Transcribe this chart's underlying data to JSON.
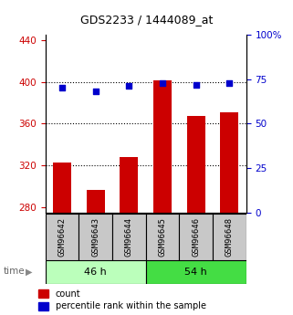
{
  "title": "GDS2233 / 1444089_at",
  "samples": [
    "GSM96642",
    "GSM96643",
    "GSM96644",
    "GSM96645",
    "GSM96646",
    "GSM96648"
  ],
  "count_values": [
    323,
    297,
    328,
    401,
    367,
    371
  ],
  "percentile_values": [
    70,
    68,
    71,
    73,
    72,
    73
  ],
  "ylim_left": [
    275,
    445
  ],
  "ylim_right": [
    0,
    100
  ],
  "yticks_left": [
    280,
    320,
    360,
    400,
    440
  ],
  "yticks_right": [
    0,
    25,
    50,
    75,
    100
  ],
  "ytick_labels_right": [
    "0",
    "25",
    "50",
    "75",
    "100%"
  ],
  "bar_color": "#cc0000",
  "dot_color": "#0000cc",
  "group1_label": "46 h",
  "group2_label": "54 h",
  "group1_color": "#bbffbb",
  "group2_color": "#44dd44",
  "time_label": "time",
  "legend_count": "count",
  "legend_percentile": "percentile rank within the sample",
  "bar_width": 0.55,
  "background_color": "#ffffff",
  "tick_label_color_left": "#cc0000",
  "tick_label_color_right": "#0000cc",
  "gridlines": [
    320,
    360,
    400
  ]
}
